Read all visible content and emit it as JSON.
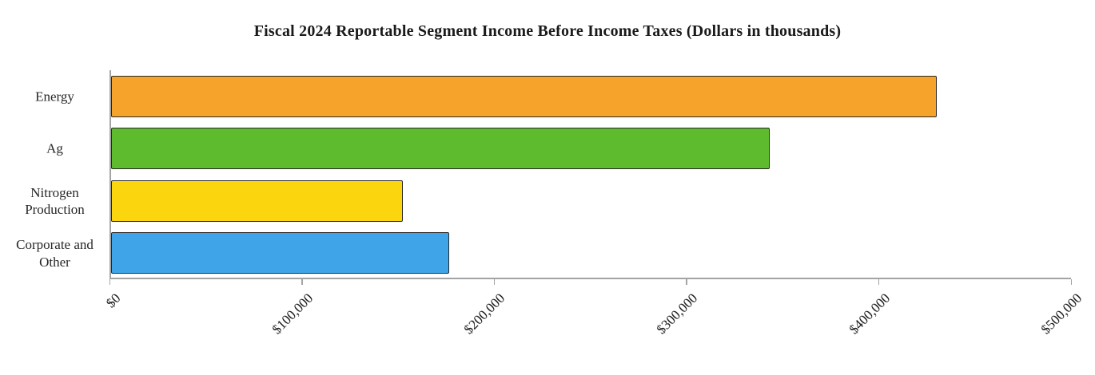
{
  "chart_data": {
    "type": "bar",
    "orientation": "horizontal",
    "title": "Fiscal 2024 Reportable Segment Income Before Income Taxes (Dollars in thousands)",
    "categories": [
      "Energy",
      "Ag",
      "Nitrogen Production",
      "Corporate and Other"
    ],
    "values": [
      430000,
      343000,
      152000,
      176000
    ],
    "colors": [
      "#F5A32B",
      "#5EBB2D",
      "#FBD60F",
      "#3FA5E8"
    ],
    "bar_border_color": "#282828",
    "axis_color": "#a3a3a3",
    "xlim": [
      0,
      500000
    ],
    "x_ticks": [
      0,
      100000,
      200000,
      300000,
      400000,
      500000
    ],
    "x_tick_labels": [
      "$0",
      "$100,000",
      "$200,000",
      "$300,000",
      "$400,000",
      "$500,000"
    ],
    "xlabel": "",
    "ylabel": "",
    "grid": false,
    "legend": false
  }
}
